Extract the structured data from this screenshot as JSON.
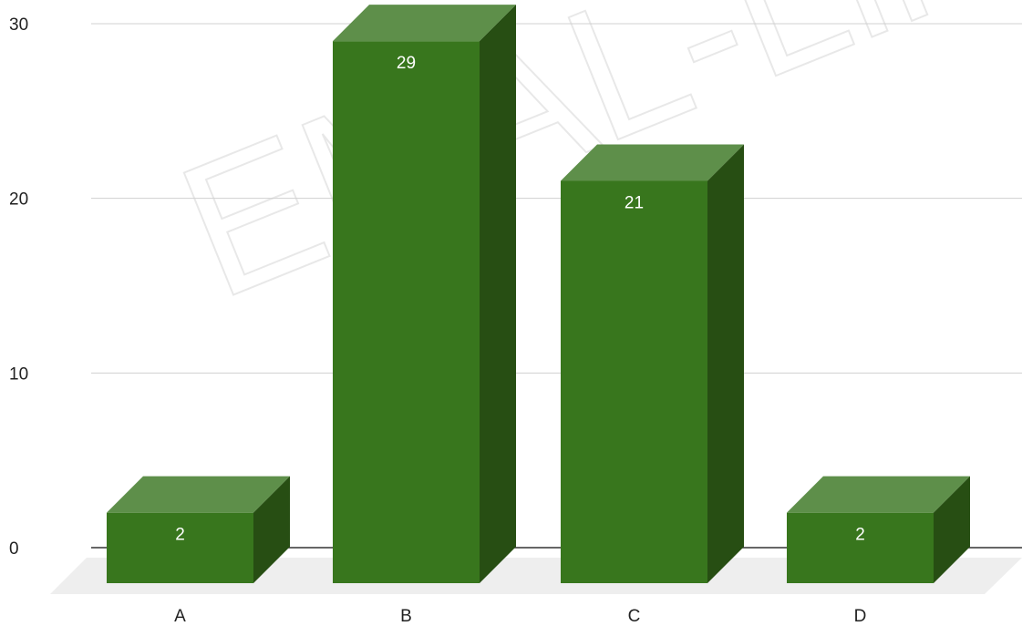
{
  "chart_data": {
    "type": "bar",
    "categories": [
      "A",
      "B",
      "C",
      "D"
    ],
    "values": [
      2,
      29,
      21,
      2
    ],
    "title": "",
    "xlabel": "",
    "ylabel": "",
    "ylim": [
      0,
      30
    ],
    "yticks": [
      0,
      10,
      20,
      30
    ],
    "grid": true,
    "three_d": true,
    "colors": {
      "bar_front": "#38761d",
      "bar_top": "#5e8f4a",
      "bar_side": "#274e13",
      "floor": "#eeeeee",
      "gridline": "#d0d0d0",
      "baseline": "#333333",
      "data_label": "#ffffff"
    }
  },
  "watermark": "EMAL-Lin"
}
